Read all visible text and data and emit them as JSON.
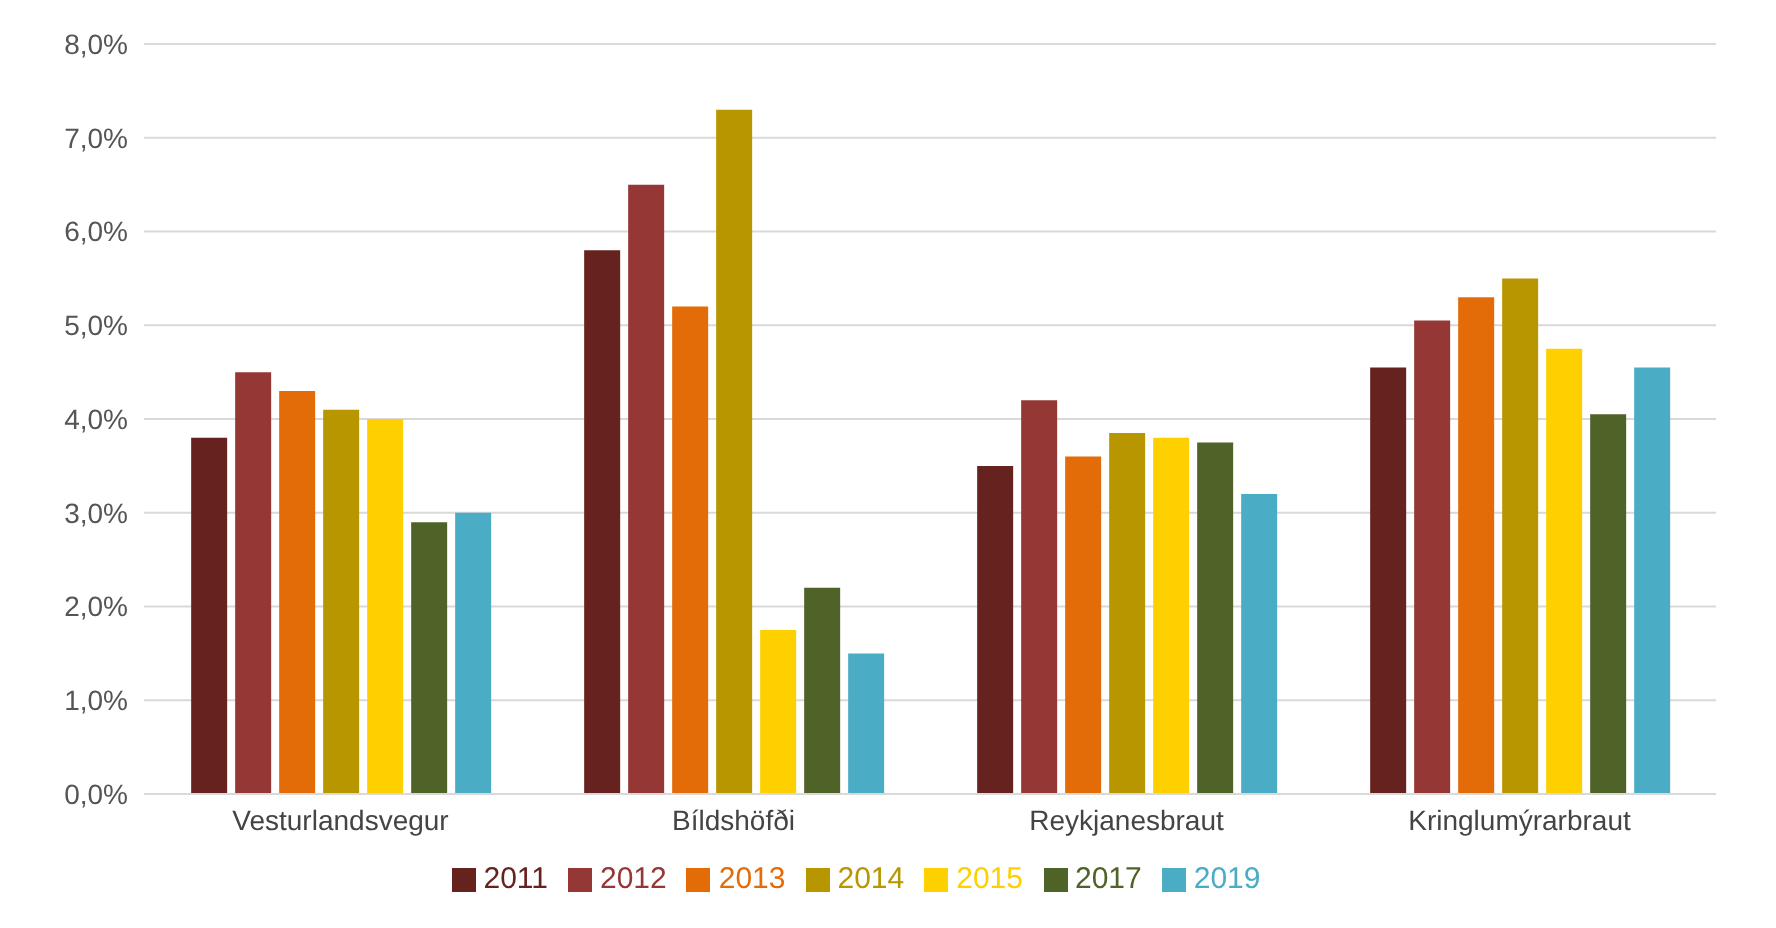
{
  "chart_data": {
    "type": "bar",
    "categories": [
      "Vesturlandsvegur",
      "Bíldshöfði",
      "Reykjanesbraut",
      "Kringlumýrarbraut"
    ],
    "series": [
      {
        "name": "2011",
        "color": "#66221f",
        "values": [
          3.8,
          5.8,
          3.5,
          4.55
        ]
      },
      {
        "name": "2012",
        "color": "#953735",
        "values": [
          4.5,
          6.5,
          4.2,
          5.05
        ]
      },
      {
        "name": "2013",
        "color": "#e36c09",
        "values": [
          4.3,
          5.2,
          3.6,
          5.3
        ]
      },
      {
        "name": "2014",
        "color": "#b89600",
        "values": [
          4.1,
          7.3,
          3.85,
          5.5
        ]
      },
      {
        "name": "2015",
        "color": "#ffd000",
        "values": [
          4.0,
          1.75,
          3.8,
          4.75
        ]
      },
      {
        "name": "2017",
        "color": "#4f6228",
        "values": [
          2.9,
          2.2,
          3.75,
          4.05
        ]
      },
      {
        "name": "2019",
        "color": "#4bacc6",
        "values": [
          3.0,
          1.5,
          3.2,
          4.55
        ]
      }
    ],
    "ylim": [
      0,
      8
    ],
    "yticks": [
      {
        "value": 0,
        "label": "0,0%"
      },
      {
        "value": 1,
        "label": "1,0%"
      },
      {
        "value": 2,
        "label": "2,0%"
      },
      {
        "value": 3,
        "label": "3,0%"
      },
      {
        "value": 4,
        "label": "4,0%"
      },
      {
        "value": 5,
        "label": "5,0%"
      },
      {
        "value": 6,
        "label": "6,0%"
      },
      {
        "value": 7,
        "label": "7,0%"
      },
      {
        "value": 8,
        "label": "8,0%"
      }
    ],
    "grid": "y",
    "legend": "bottom"
  }
}
